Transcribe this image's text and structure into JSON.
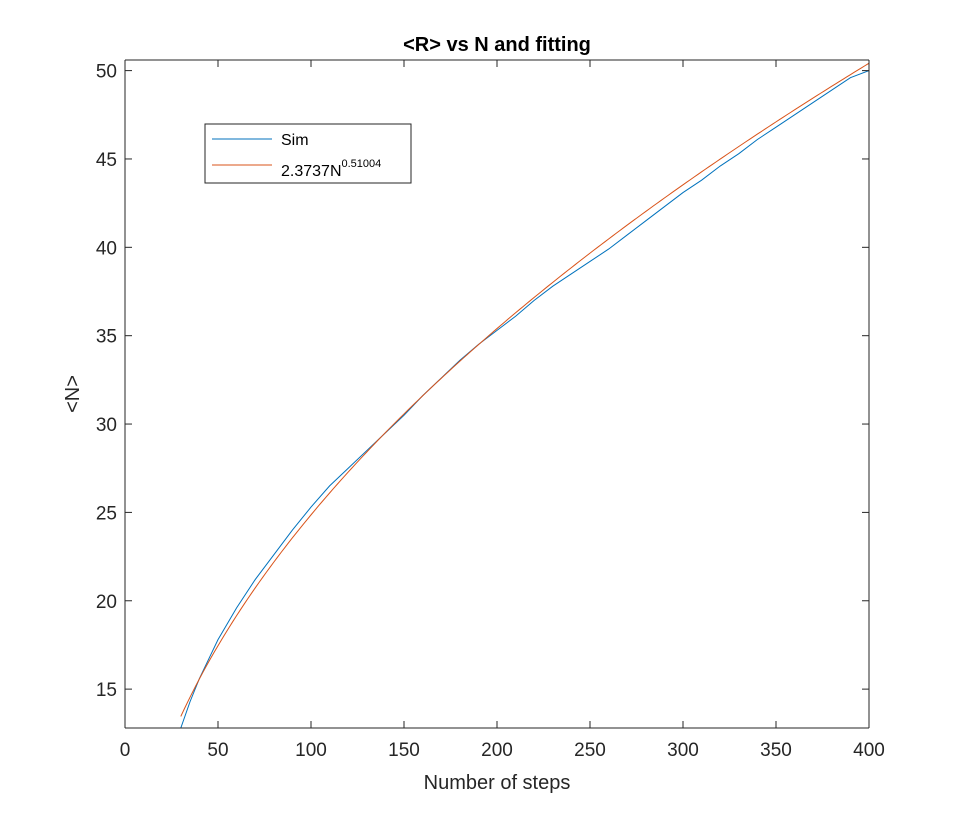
{
  "chart_data": {
    "type": "line",
    "title": "<R> vs N and fitting",
    "xlabel": "Number of steps",
    "ylabel": "<N>",
    "xlim": [
      0,
      400
    ],
    "ylim": [
      12.8,
      50.6
    ],
    "xticks": [
      0,
      50,
      100,
      150,
      200,
      250,
      300,
      350,
      400
    ],
    "yticks": [
      15,
      20,
      25,
      30,
      35,
      40,
      45,
      50
    ],
    "grid": false,
    "legend_position": "top-left",
    "series": [
      {
        "name": "Sim",
        "color": "#0072BD",
        "x": [
          30,
          35,
          40,
          45,
          50,
          60,
          70,
          80,
          90,
          100,
          110,
          120,
          130,
          140,
          150,
          160,
          170,
          180,
          190,
          200,
          210,
          220,
          230,
          240,
          250,
          260,
          270,
          280,
          290,
          300,
          310,
          320,
          330,
          340,
          350,
          360,
          370,
          380,
          390,
          400
        ],
        "y": [
          12.8,
          14.3,
          15.6,
          16.7,
          17.8,
          19.6,
          21.2,
          22.6,
          24.0,
          25.3,
          26.5,
          27.5,
          28.5,
          29.5,
          30.5,
          31.6,
          32.6,
          33.6,
          34.5,
          35.3,
          36.1,
          37.0,
          37.8,
          38.5,
          39.2,
          39.9,
          40.7,
          41.5,
          42.3,
          43.1,
          43.8,
          44.6,
          45.3,
          46.1,
          46.8,
          47.5,
          48.2,
          48.9,
          49.6,
          50.0
        ]
      },
      {
        "name_prefix": "2.3737N",
        "name_exponent": "0.51004",
        "color": "#D95319",
        "coefficient": 2.3737,
        "exponent": 0.51004,
        "x_range": [
          30,
          400
        ]
      }
    ]
  }
}
